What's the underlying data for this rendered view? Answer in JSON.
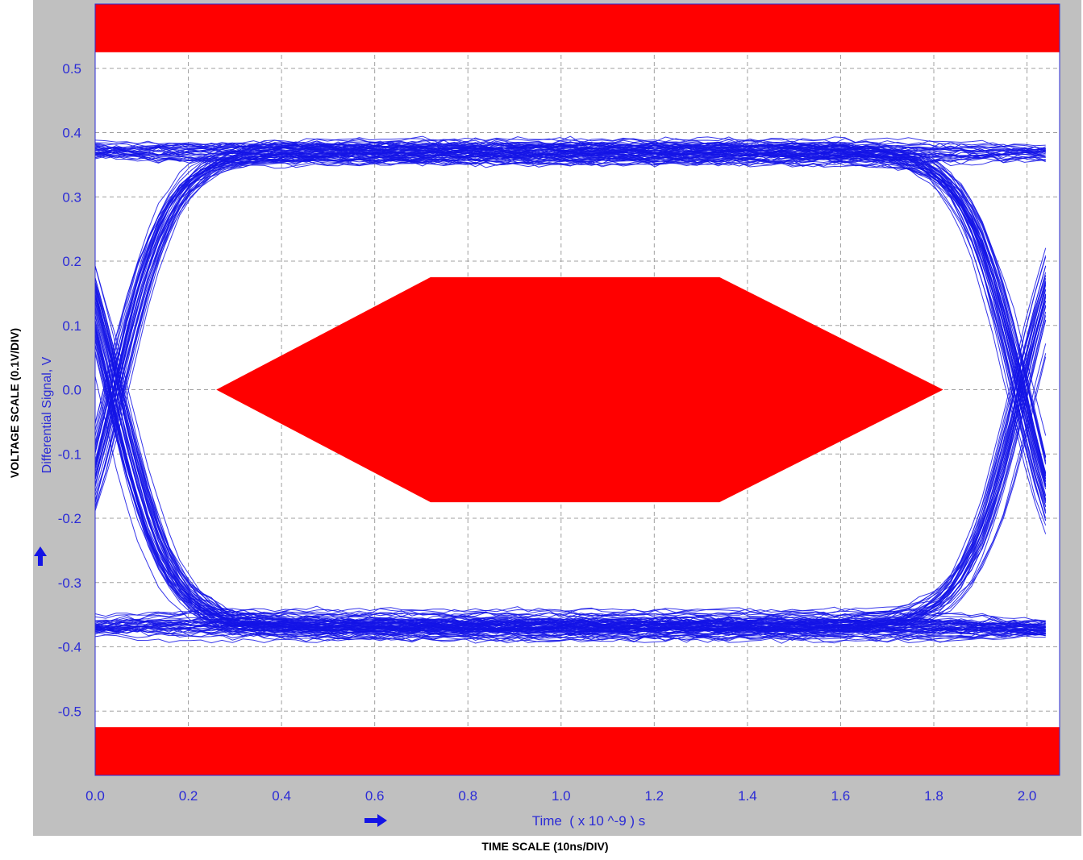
{
  "chart_data": {
    "type": "eye-diagram",
    "title": "",
    "xlabel": "Time  ( x 10 ^-9 ) s",
    "ylabel": "Differential Signal, V",
    "outer_xlabel": "TIME SCALE (10ns/DIV)",
    "outer_ylabel": "VOLTAGE SCALE (0.1V/DIV)",
    "xlim": [
      0.0,
      2.07
    ],
    "ylim": [
      -0.6,
      0.6
    ],
    "xticks": [
      "0.0",
      "0.2",
      "0.4",
      "0.6",
      "0.8",
      "1.0",
      "1.2",
      "1.4",
      "1.6",
      "1.8",
      "2.0"
    ],
    "yticks": [
      "0.5",
      "0.4",
      "0.3",
      "0.2",
      "0.1",
      "0.0",
      "-0.1",
      "-0.2",
      "-0.3",
      "-0.4",
      "-0.5"
    ],
    "grid": true,
    "trace_levels": {
      "high": 0.37,
      "low": -0.37,
      "spread": 0.025
    },
    "crossings": [
      0.04,
      1.99
    ],
    "mask": {
      "center_hexagon": [
        [
          0.26,
          0.0
        ],
        [
          0.72,
          0.175
        ],
        [
          1.34,
          0.175
        ],
        [
          1.82,
          0.0
        ],
        [
          1.34,
          -0.175
        ],
        [
          0.72,
          -0.175
        ]
      ],
      "top_limit": 0.525,
      "bottom_limit": -0.525
    },
    "colors": {
      "trace": "#1414e6",
      "mask": "#ff0000",
      "grid": "#a0a0a0",
      "axis_text": "#2b2bd6",
      "frame": "#c0c0c0",
      "plot_bg": "#ffffff"
    },
    "icons": {
      "y_arrow": "arrow-up-icon",
      "x_arrow": "arrow-right-icon"
    }
  }
}
